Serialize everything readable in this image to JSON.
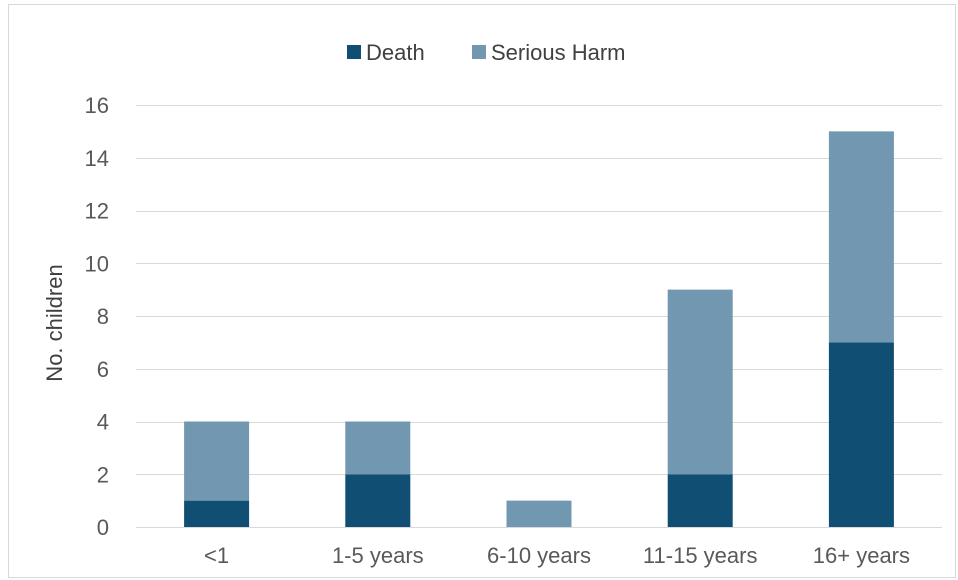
{
  "chart_data": {
    "type": "bar",
    "stacked": true,
    "categories": [
      "<1",
      "1-5 years",
      "6-10 years",
      "11-15 years",
      "16+ years"
    ],
    "series": [
      {
        "name": "Death",
        "values": [
          1,
          2,
          0,
          2,
          7
        ],
        "color": "#114e73"
      },
      {
        "name": "Serious Harm",
        "values": [
          3,
          2,
          1,
          7,
          8
        ],
        "color": "#7297b0"
      }
    ],
    "title": "",
    "xlabel": "",
    "ylabel": "No. children",
    "ylim": [
      0,
      16
    ],
    "yticks": [
      0,
      2,
      4,
      6,
      8,
      10,
      12,
      14,
      16
    ],
    "grid": true,
    "legend_position": "top"
  },
  "colors": {
    "gridline": "#d9d9d9",
    "axis": "#d9d9d9"
  }
}
